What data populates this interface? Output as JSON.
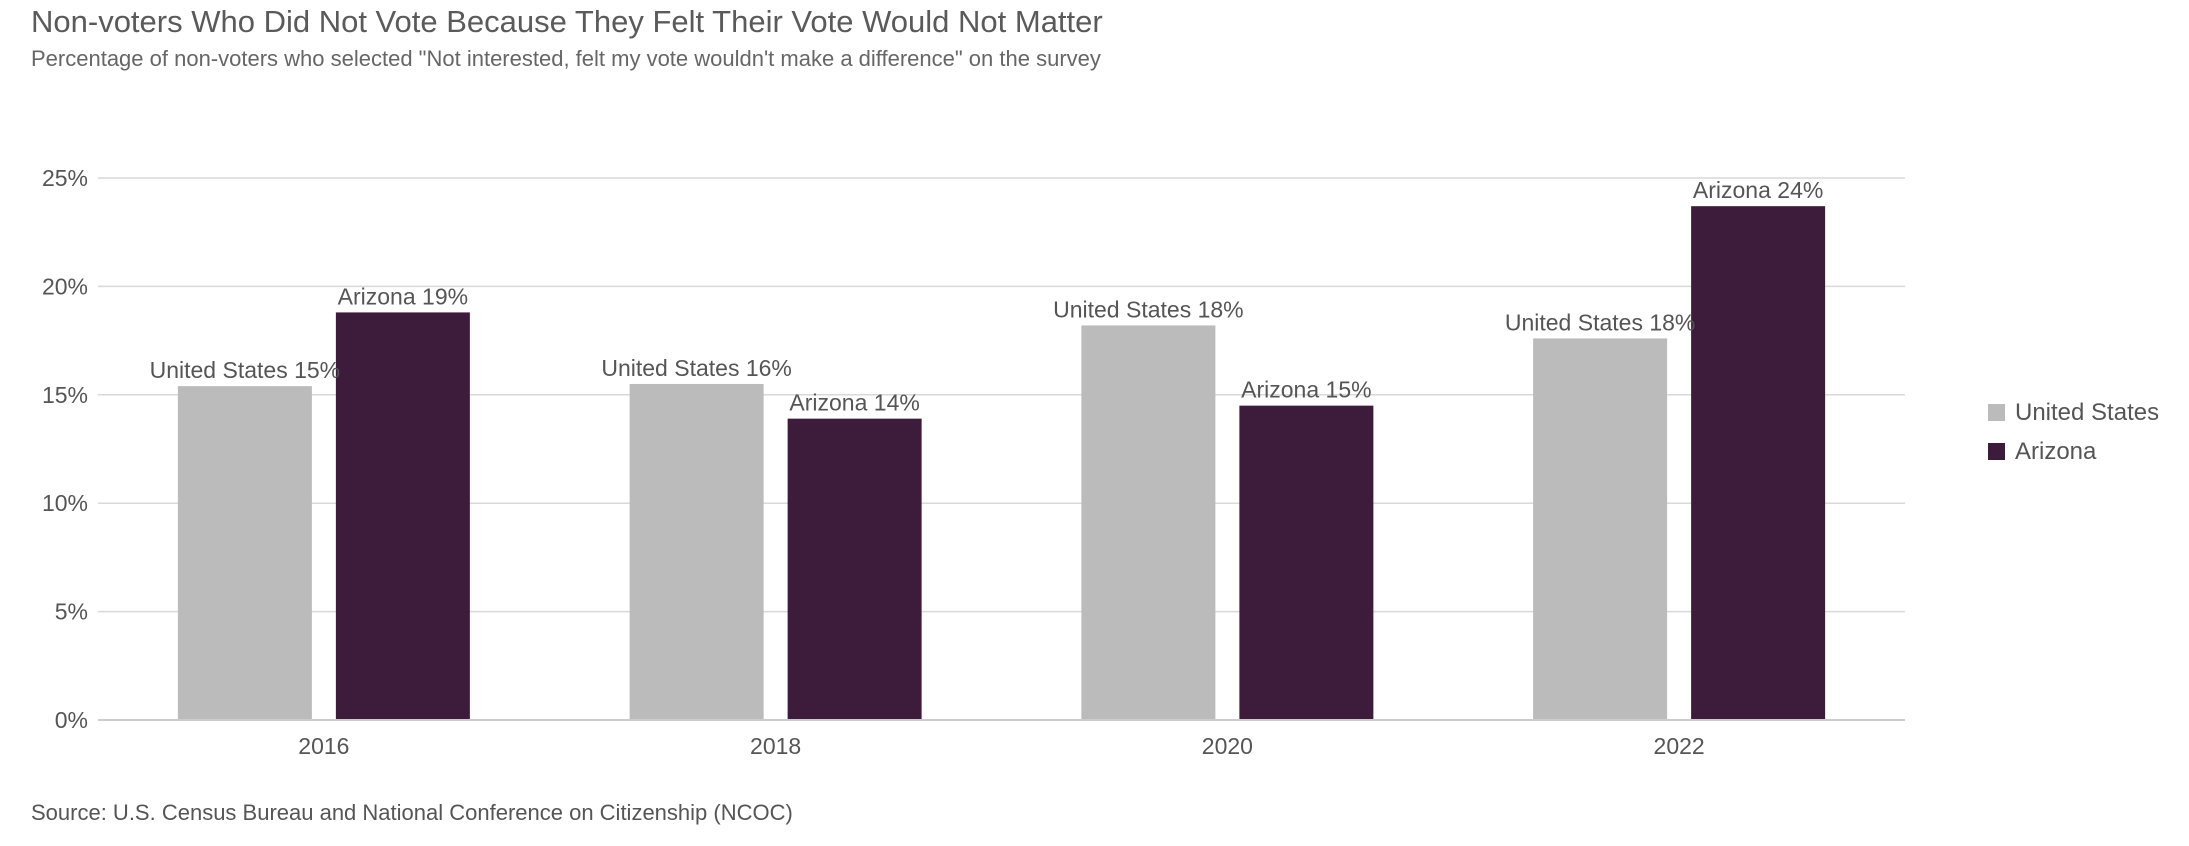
{
  "title": "Non-voters Who Did Not Vote Because They Felt Their Vote Would Not Matter",
  "subtitle": "Percentage of non-voters who selected \"Not interested, felt my vote wouldn't make a difference\" on the survey",
  "source": "Source: U.S. Census Bureau and National Conference on Citizenship (NCOC)",
  "colors": {
    "united_states": "#bbbbbb",
    "arizona": "#3d1c3b",
    "grid": "#d9d9d9",
    "axis": "#cccccc"
  },
  "legend": [
    {
      "label": "United States",
      "color": "#bbbbbb"
    },
    {
      "label": "Arizona",
      "color": "#3d1c3b"
    }
  ],
  "chart_data": {
    "type": "bar",
    "title": "Non-voters Who Did Not Vote Because They Felt Their Vote Would Not Matter",
    "xlabel": "",
    "ylabel": "",
    "categories": [
      "2016",
      "2018",
      "2020",
      "2022"
    ],
    "series": [
      {
        "name": "United States",
        "values": [
          15.4,
          15.5,
          18.2,
          17.6
        ],
        "labels": [
          "United States 15%",
          "United States 16%",
          "United States 18%",
          "United States 18%"
        ]
      },
      {
        "name": "Arizona",
        "values": [
          18.8,
          13.9,
          14.5,
          23.7
        ],
        "labels": [
          "Arizona 19%",
          "Arizona 14%",
          "Arizona 15%",
          "Arizona 24%"
        ]
      }
    ],
    "ylim": [
      0,
      25
    ],
    "yticks": [
      0,
      5,
      10,
      15,
      20,
      25
    ],
    "ytick_labels": [
      "0%",
      "5%",
      "10%",
      "15%",
      "20%",
      "25%"
    ],
    "grid": true,
    "legend_position": "right"
  }
}
